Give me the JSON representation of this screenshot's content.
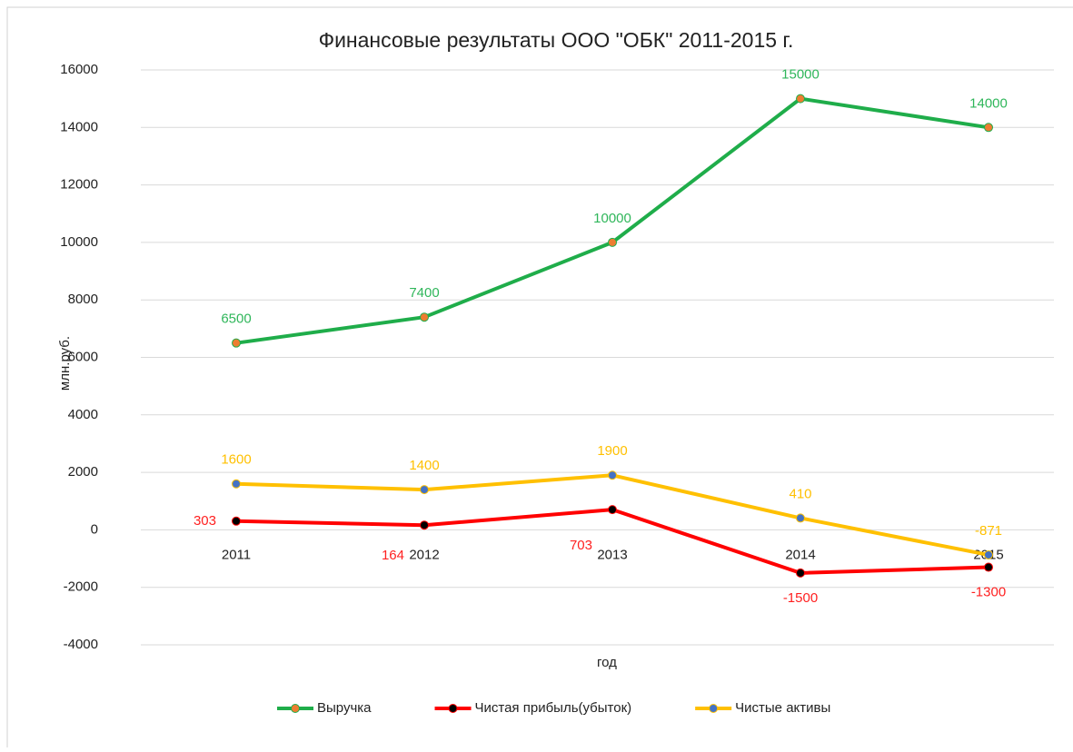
{
  "chart_data": {
    "type": "line",
    "title": "Финансовые результаты ООО \"ОБК\" 2011-2015 г.",
    "x_label": "год",
    "y_label": "млн.руб.",
    "categories": [
      "2011",
      "2012",
      "2013",
      "2014",
      "2015"
    ],
    "series": [
      {
        "name": "Выручка",
        "color": "#1fad4a",
        "marker_color": "#ed7d31",
        "label_color": "#2fb65a",
        "values": [
          6500,
          7400,
          10000,
          15000,
          14000
        ]
      },
      {
        "name": "Чистая прибыль(убыток)",
        "color": "#ff0000",
        "marker_color": "#000000",
        "label_color": "#ff2020",
        "values": [
          303,
          164,
          703,
          -1500,
          -1300
        ]
      },
      {
        "name": "Чистые активы",
        "color": "#ffc000",
        "marker_color": "#4472c4",
        "label_color": "#ffc000",
        "values": [
          1600,
          1400,
          1900,
          410,
          -871
        ]
      }
    ],
    "ylim": [
      -4000,
      16000
    ],
    "yticks": [
      -4000,
      -2000,
      0,
      2000,
      4000,
      6000,
      8000,
      10000,
      12000,
      14000,
      16000
    ],
    "grid": true,
    "legend": "bottom"
  }
}
